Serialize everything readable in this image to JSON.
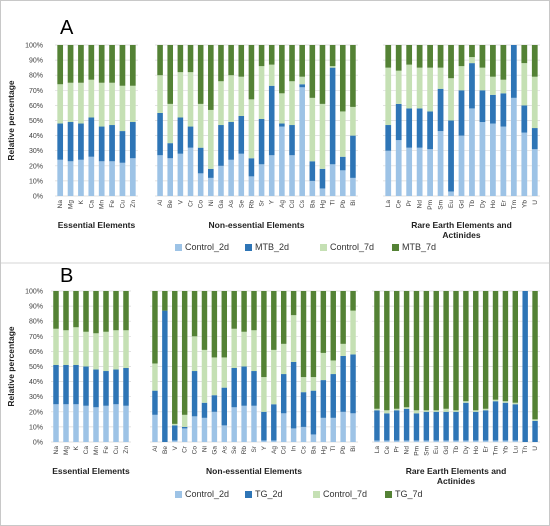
{
  "chart_data": [
    {
      "type": "bar",
      "stacked": true,
      "panel_label": "A",
      "ylabel": "Relative percentage",
      "ylim": [
        0,
        100
      ],
      "yticks": [
        "0%",
        "10%",
        "20%",
        "30%",
        "40%",
        "50%",
        "60%",
        "70%",
        "80%",
        "90%",
        "100%"
      ],
      "grid": true,
      "legend_position": "bottom",
      "colors": [
        "#9dc3e6",
        "#2e75b6",
        "#c5e0b4",
        "#548235"
      ],
      "groups": [
        {
          "label": "Essential Elements",
          "categories": [
            "Na",
            "Mg",
            "K",
            "Ca",
            "Mn",
            "Fe",
            "Cu",
            "Zn"
          ],
          "series": [
            {
              "name": "Control_2d",
              "values": [
                24,
                23,
                24,
                26,
                23,
                23,
                22,
                25
              ]
            },
            {
              "name": "MTB_2d",
              "values": [
                24,
                26,
                24,
                26,
                23,
                24,
                21,
                24
              ]
            },
            {
              "name": "Control_7d",
              "values": [
                26,
                26,
                27,
                25,
                29,
                28,
                30,
                24
              ]
            },
            {
              "name": "MTB_7d",
              "values": [
                26,
                25,
                25,
                23,
                25,
                25,
                27,
                27
              ]
            }
          ]
        },
        {
          "label": "Non-essential Elements",
          "categories": [
            "Al",
            "Be",
            "V",
            "Cr",
            "Co",
            "Ni",
            "Ga",
            "As",
            "Se",
            "Rb",
            "Sr",
            "Y",
            "Ag",
            "Cd",
            "Cs",
            "Ba",
            "Hg",
            "Tl",
            "Pb",
            "Bi"
          ],
          "series": [
            {
              "name": "Control_2d",
              "values": [
                27,
                25,
                28,
                32,
                15,
                12,
                20,
                24,
                28,
                13,
                21,
                27,
                46,
                27,
                72,
                10,
                5,
                21,
                17,
                12
              ]
            },
            {
              "name": "MTB_2d",
              "values": [
                28,
                10,
                24,
                14,
                17,
                6,
                27,
                25,
                25,
                12,
                30,
                46,
                2,
                20,
                2,
                13,
                13,
                64,
                9,
                28
              ]
            },
            {
              "name": "Control_7d",
              "values": [
                25,
                26,
                30,
                36,
                29,
                39,
                29,
                31,
                26,
                39,
                35,
                14,
                20,
                29,
                5,
                42,
                43,
                1,
                30,
                19
              ]
            },
            {
              "name": "MTB_7d",
              "values": [
                20,
                39,
                18,
                18,
                39,
                43,
                24,
                20,
                21,
                36,
                14,
                13,
                32,
                24,
                21,
                35,
                39,
                14,
                44,
                41
              ]
            }
          ]
        },
        {
          "label": "Rare Earth Elements and Actinides",
          "categories": [
            "La",
            "Ce",
            "Pr",
            "Nd",
            "Pm",
            "Sm",
            "Eu",
            "Gd",
            "Tb",
            "Dy",
            "Ho",
            "Er",
            "Tm",
            "Yb",
            "U"
          ],
          "series": [
            {
              "name": "Control_2d",
              "values": [
                30,
                37,
                32,
                32,
                31,
                43,
                3,
                40,
                58,
                49,
                48,
                46,
                65,
                42,
                31
              ]
            },
            {
              "name": "MTB_2d",
              "values": [
                17,
                24,
                26,
                26,
                25,
                28,
                47,
                30,
                30,
                21,
                19,
                22,
                35,
                18,
                14
              ]
            },
            {
              "name": "Control_7d",
              "values": [
                38,
                22,
                29,
                27,
                29,
                14,
                28,
                16,
                4,
                15,
                12,
                9,
                0,
                28,
                34
              ]
            },
            {
              "name": "MTB_7d",
              "values": [
                15,
                17,
                13,
                15,
                15,
                15,
                22,
                14,
                8,
                15,
                21,
                23,
                0,
                12,
                21
              ]
            }
          ]
        }
      ],
      "legend": [
        "Control_2d",
        "MTB_2d",
        "Control_7d",
        "MTB_7d"
      ]
    },
    {
      "type": "bar",
      "stacked": true,
      "panel_label": "B",
      "ylabel": "Relative percentage",
      "ylim": [
        0,
        100
      ],
      "yticks": [
        "0%",
        "10%",
        "20%",
        "30%",
        "40%",
        "50%",
        "60%",
        "70%",
        "80%",
        "90%",
        "100%"
      ],
      "grid": true,
      "legend_position": "bottom",
      "colors": [
        "#9dc3e6",
        "#2e75b6",
        "#c5e0b4",
        "#548235"
      ],
      "groups": [
        {
          "label": "Essential Elements",
          "categories": [
            "Na",
            "Mg",
            "K",
            "Ca",
            "Mn",
            "Fe",
            "Cu",
            "Zn"
          ],
          "series": [
            {
              "name": "Control_2d",
              "values": [
                25,
                25,
                25,
                24,
                23,
                24,
                25,
                24
              ]
            },
            {
              "name": "TG_2d",
              "values": [
                26,
                26,
                26,
                26,
                25,
                23,
                23,
                25
              ]
            },
            {
              "name": "Control_7d",
              "values": [
                24,
                23,
                25,
                23,
                24,
                26,
                26,
                25
              ]
            },
            {
              "name": "TG_7d",
              "values": [
                25,
                26,
                24,
                27,
                28,
                27,
                26,
                26
              ]
            }
          ]
        },
        {
          "label": "Non-essential Elements",
          "categories": [
            "Al",
            "Be",
            "V",
            "Cr",
            "Co",
            "Ni",
            "Ga",
            "As",
            "Se",
            "Rb",
            "Sr",
            "Y",
            "Ag",
            "Cd",
            "In",
            "Cs",
            "Ba",
            "Hg",
            "Tl",
            "Pb",
            "Bi"
          ],
          "series": [
            {
              "name": "Control_2d",
              "values": [
                18,
                0,
                1,
                9,
                17,
                16,
                20,
                11,
                23,
                24,
                24,
                1,
                1,
                19,
                9,
                10,
                5,
                16,
                16,
                20,
                19
              ]
            },
            {
              "name": "TG_2d",
              "values": [
                16,
                87,
                10,
                1,
                30,
                10,
                11,
                25,
                26,
                26,
                23,
                19,
                24,
                26,
                44,
                23,
                29,
                25,
                29,
                37,
                39
              ]
            },
            {
              "name": "Control_7d",
              "values": [
                18,
                0,
                1,
                8,
                23,
                35,
                25,
                20,
                26,
                23,
                27,
                23,
                36,
                20,
                31,
                10,
                9,
                18,
                9,
                8,
                29
              ]
            },
            {
              "name": "TG_7d",
              "values": [
                48,
                13,
                88,
                82,
                30,
                39,
                44,
                44,
                25,
                27,
                26,
                57,
                39,
                35,
                16,
                57,
                57,
                41,
                46,
                35,
                13
              ]
            }
          ]
        },
        {
          "label": "Rare Earth Elements and Actinides",
          "categories": [
            "La",
            "Ce",
            "Pr",
            "Nd",
            "Pm",
            "Sm",
            "Eu",
            "Gd",
            "Tb",
            "Dy",
            "Ho",
            "Er",
            "Tm",
            "Yb",
            "Lu",
            "Th",
            "U"
          ],
          "series": [
            {
              "name": "Control_2d",
              "values": [
                1,
                1,
                1,
                1,
                1,
                1,
                1,
                1,
                1,
                1,
                1,
                1,
                1,
                1,
                1,
                0,
                0
              ]
            },
            {
              "name": "TG_2d",
              "values": [
                20,
                18,
                20,
                21,
                18,
                19,
                19,
                19,
                19,
                25,
                19,
                20,
                26,
                25,
                24,
                100,
                14
              ]
            },
            {
              "name": "Control_7d",
              "values": [
                1,
                2,
                1,
                1,
                2,
                1,
                1,
                2,
                1,
                1,
                1,
                1,
                1,
                1,
                1,
                0,
                1
              ]
            },
            {
              "name": "TG_7d",
              "values": [
                78,
                79,
                78,
                77,
                79,
                79,
                79,
                78,
                79,
                73,
                79,
                78,
                72,
                73,
                74,
                0,
                85
              ]
            }
          ]
        }
      ],
      "legend": [
        "Control_2d",
        "TG_2d",
        "Control_7d",
        "TG_7d"
      ]
    }
  ]
}
